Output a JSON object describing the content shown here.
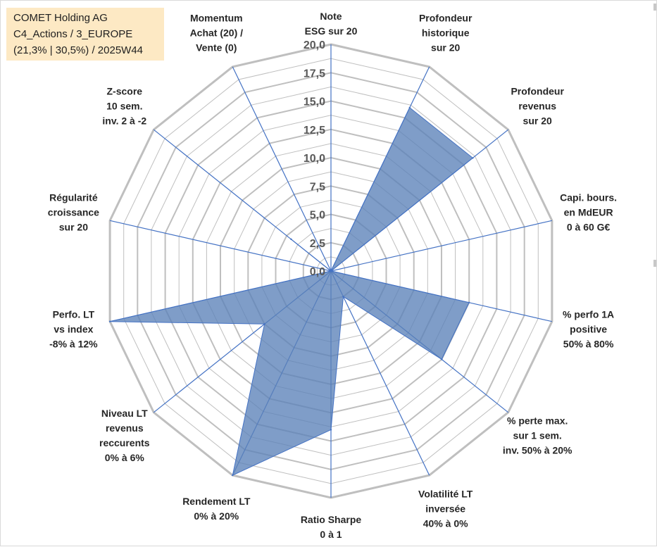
{
  "title_box": {
    "lines": [
      "COMET Holding AG",
      "C4_Actions / 3_EUROPE",
      "(21,3% | 30,5%) / 2025W44"
    ]
  },
  "colors": {
    "fill": "#5b82b8",
    "spoke": "#4472c4",
    "grid": "#bfbfbf",
    "title_bg": "#fde9c4"
  },
  "chart_data": {
    "type": "radar",
    "scale_min": 0,
    "scale_max": 20,
    "ticks": [
      "0,0",
      "2,5",
      "5,0",
      "7,5",
      "10,0",
      "12,5",
      "15,0",
      "17,5",
      "20,0"
    ],
    "axes": [
      {
        "label_lines": [
          "Note",
          "ESG sur 20"
        ],
        "value": 0
      },
      {
        "label_lines": [
          "Profondeur",
          "historique",
          "sur 20"
        ],
        "value": 16
      },
      {
        "label_lines": [
          "Profondeur",
          "revenus",
          "sur 20"
        ],
        "value": 16
      },
      {
        "label_lines": [
          "Capi. bours.",
          "en MdEUR",
          "0 à 60 G€"
        ],
        "value": 0
      },
      {
        "label_lines": [
          "% perfo 1A",
          "positive",
          "50% à 80%"
        ],
        "value": 12.5
      },
      {
        "label_lines": [
          "% perte max.",
          "sur 1 sem.",
          "inv. 50% à 20%"
        ],
        "value": 12.5
      },
      {
        "label_lines": [
          "Volatilité LT",
          "inversée",
          "40% à 0%"
        ],
        "value": 2.5
      },
      {
        "label_lines": [
          "Ratio Sharpe",
          "0 à 1"
        ],
        "value": 14
      },
      {
        "label_lines": [
          "Rendement LT",
          "0% à 20%"
        ],
        "value": 20
      },
      {
        "label_lines": [
          "Niveau LT",
          "revenus",
          "reccurents",
          "0% à 6%"
        ],
        "value": 7.5
      },
      {
        "label_lines": [
          "Perfo. LT",
          "vs index",
          "-8% à 12%"
        ],
        "value": 20
      },
      {
        "label_lines": [
          "Régularité",
          "croissance",
          "sur 20"
        ],
        "value": 0
      },
      {
        "label_lines": [
          "Z-score",
          "10 sem.",
          "inv. 2 à -2"
        ],
        "value": 4.5
      },
      {
        "label_lines": [
          "Momentum",
          "Achat (20) /",
          "Vente (0)"
        ],
        "value": 0
      }
    ]
  }
}
